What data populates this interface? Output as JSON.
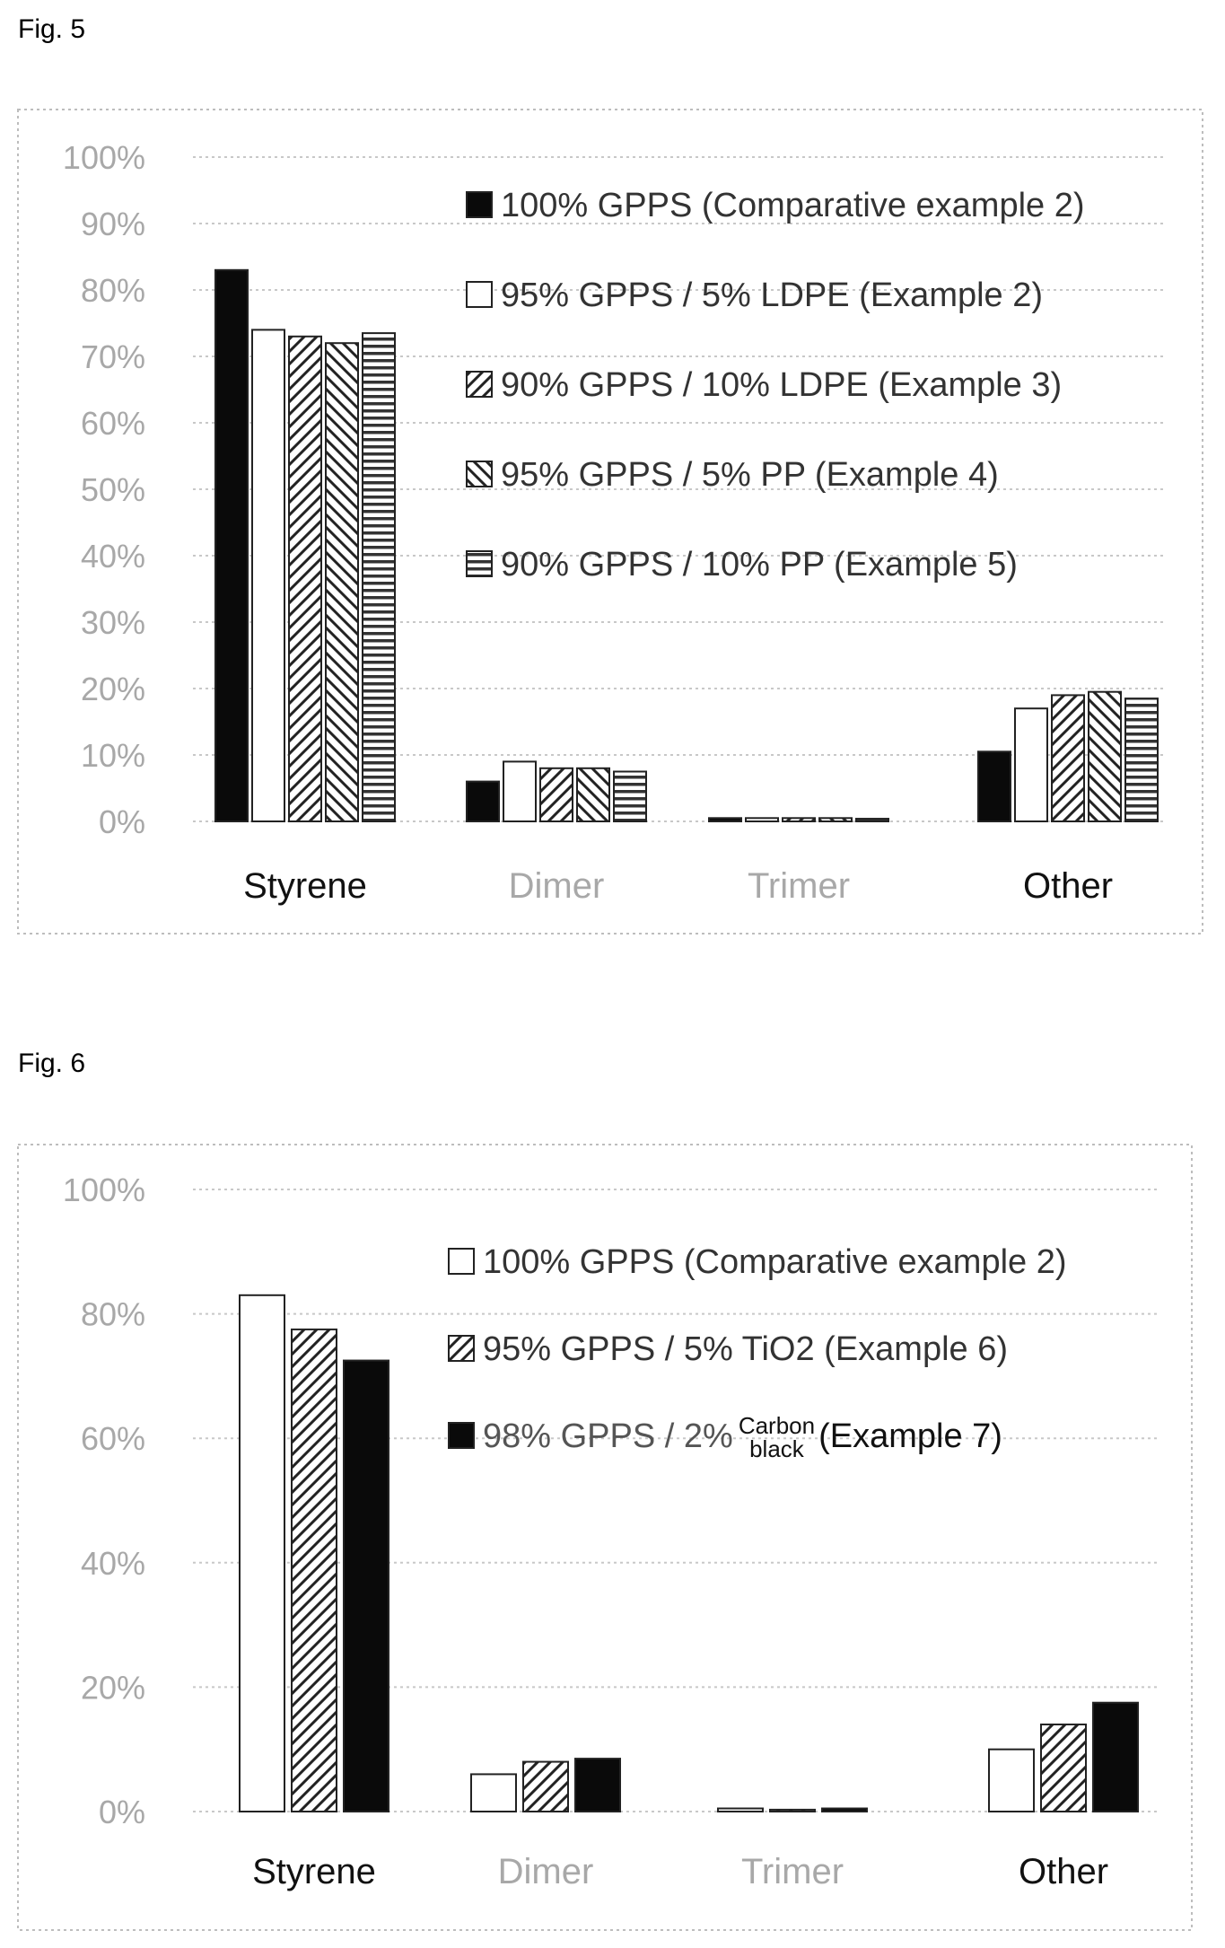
{
  "figures": [
    {
      "label": "Fig. 5"
    },
    {
      "label": "Fig. 6"
    }
  ],
  "colors": {
    "text_light": "#a8a8a8",
    "text_dark": "#111111",
    "bar_stroke": "#222222",
    "grid": "#c8c8c8"
  },
  "chart_data": [
    {
      "type": "bar",
      "title": "",
      "xlabel": "",
      "ylabel": "",
      "ylim": [
        0,
        1
      ],
      "yticks": [
        "0%",
        "10%",
        "20%",
        "30%",
        "40%",
        "50%",
        "60%",
        "70%",
        "80%",
        "90%",
        "100%"
      ],
      "categories": [
        "Styrene",
        "Dimer",
        "Trimer",
        "Other"
      ],
      "category_tone": [
        "dark",
        "light",
        "light",
        "dark"
      ],
      "grid": true,
      "legend_position": "top-right",
      "series": [
        {
          "name": "100% GPPS (Comparative example 2)",
          "pattern": "solid",
          "values": [
            0.83,
            0.06,
            0.005,
            0.105
          ]
        },
        {
          "name": "95% GPPS / 5% LDPE (Example 2)",
          "pattern": "white",
          "values": [
            0.74,
            0.09,
            0.005,
            0.17
          ]
        },
        {
          "name": "90% GPPS / 10% LDPE (Example 3)",
          "pattern": "hatch-fwd",
          "values": [
            0.73,
            0.08,
            0.005,
            0.19
          ]
        },
        {
          "name": "95% GPPS / 5% PP (Example 4)",
          "pattern": "hatch-back",
          "values": [
            0.72,
            0.08,
            0.005,
            0.195
          ]
        },
        {
          "name": "90% GPPS / 10% PP (Example 5)",
          "pattern": "hstripe",
          "values": [
            0.735,
            0.075,
            0.004,
            0.185
          ]
        }
      ]
    },
    {
      "type": "bar",
      "title": "",
      "xlabel": "",
      "ylabel": "",
      "ylim": [
        0,
        1
      ],
      "yticks": [
        "0%",
        "20%",
        "40%",
        "60%",
        "80%",
        "100%"
      ],
      "categories": [
        "Styrene",
        "Dimer",
        "Trimer",
        "Other"
      ],
      "category_tone": [
        "dark",
        "light",
        "light",
        "dark"
      ],
      "grid": true,
      "legend_position": "top-right",
      "series": [
        {
          "name": "100% GPPS (Comparative example 2)",
          "pattern": "white",
          "values": [
            0.83,
            0.06,
            0.005,
            0.1
          ]
        },
        {
          "name": "95% GPPS / 5% TiO2 (Example 6)",
          "pattern": "hatch-fwd",
          "values": [
            0.775,
            0.08,
            0.003,
            0.14
          ]
        },
        {
          "name": "98% GPPS / 2% Carbon black (Example 7)",
          "pattern": "solid",
          "values": [
            0.725,
            0.085,
            0.005,
            0.175
          ]
        }
      ],
      "legend_display": [
        {
          "main": "100% GPPS (Comparative example 2)"
        },
        {
          "main": "95% GPPS / 5% TiO2 (Example 6)"
        },
        {
          "main": "98% GPPS / 2%",
          "stack_top": "Carbon",
          "stack_bottom": "black",
          "tail": "(Example 7)"
        }
      ]
    }
  ]
}
